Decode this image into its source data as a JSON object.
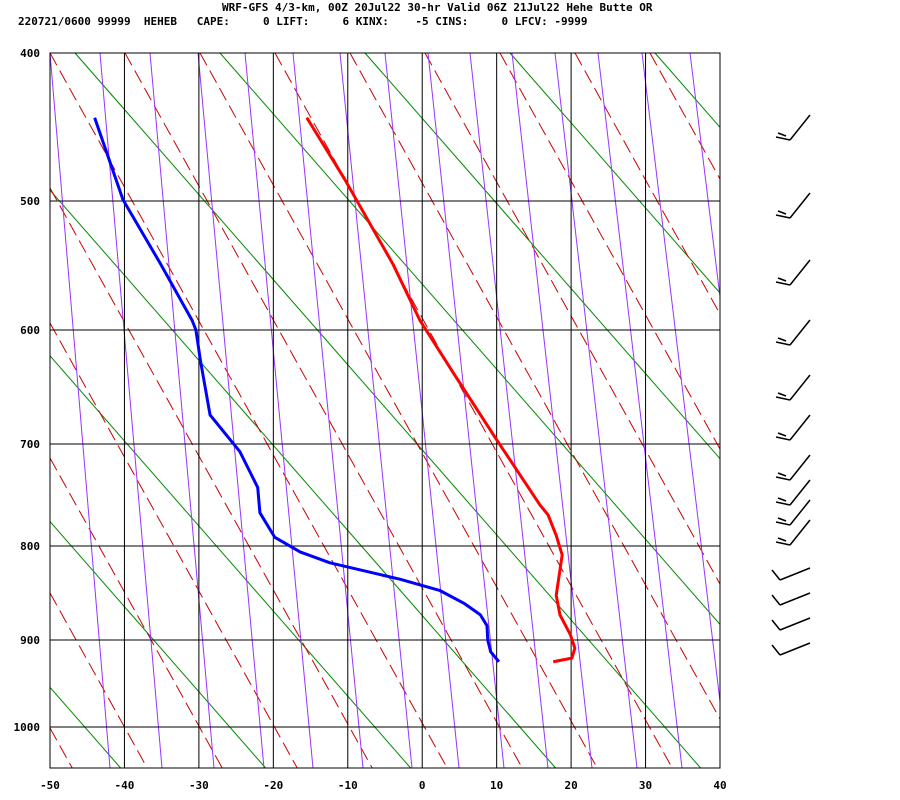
{
  "header": {
    "title": "WRF-GFS 4/3-km, 00Z 20Jul22 30-hr Valid 06Z 21Jul22 Hehe Butte OR",
    "info": "220721/0600 99999  HEHEB   CAPE:     0 LIFT:     6 KINX:    -5 CINS:     0 LFCV: -9999"
  },
  "chart_data": {
    "type": "line",
    "subtype": "skew-t sounding",
    "xlim": [
      -50,
      40
    ],
    "ylim": [
      1050,
      400
    ],
    "x_ticks": [
      "-50",
      "-40",
      "-30",
      "-20",
      "-10",
      "0",
      "10",
      "20",
      "30",
      "40"
    ],
    "y_ticks": [
      "400",
      "500",
      "600",
      "700",
      "800",
      "900",
      "1000"
    ],
    "grid": true,
    "colors": {
      "temperature": "#ff0000",
      "dewpoint": "#0000ff",
      "grid": "#000000",
      "adiabat": "#9933ff",
      "dry_adiabat": "#cc0000",
      "mixing": "#008800"
    },
    "series": [
      {
        "key": "temperature",
        "points": [
          [
            441,
            -15.5
          ],
          [
            484,
            -10.4
          ],
          [
            547,
            -3.9
          ],
          [
            592,
            -0.3
          ],
          [
            638,
            4.4
          ],
          [
            696,
            10.0
          ],
          [
            758,
            15.8
          ],
          [
            768,
            16.9
          ],
          [
            789,
            18.0
          ],
          [
            809,
            18.8
          ],
          [
            851,
            18.0
          ],
          [
            872,
            18.5
          ],
          [
            894,
            19.9
          ],
          [
            909,
            20.5
          ],
          [
            920,
            20.1
          ],
          [
            924,
            17.6
          ]
        ]
      },
      {
        "key": "dewpoint",
        "points": [
          [
            441,
            -44.0
          ],
          [
            499,
            -40.2
          ],
          [
            546,
            -35.2
          ],
          [
            592,
            -30.9
          ],
          [
            600,
            -30.4
          ],
          [
            625,
            -29.8
          ],
          [
            673,
            -28.5
          ],
          [
            707,
            -24.5
          ],
          [
            741,
            -22.1
          ],
          [
            766,
            -21.8
          ],
          [
            791,
            -19.8
          ],
          [
            806,
            -16.4
          ],
          [
            817,
            -12.4
          ],
          [
            834,
            -3.0
          ],
          [
            846,
            2.4
          ],
          [
            860,
            5.7
          ],
          [
            872,
            7.8
          ],
          [
            884,
            8.7
          ],
          [
            900,
            8.8
          ],
          [
            913,
            9.2
          ],
          [
            924,
            10.3
          ]
        ]
      }
    ],
    "wind_barbs_icon": "wind-barb-icon"
  }
}
